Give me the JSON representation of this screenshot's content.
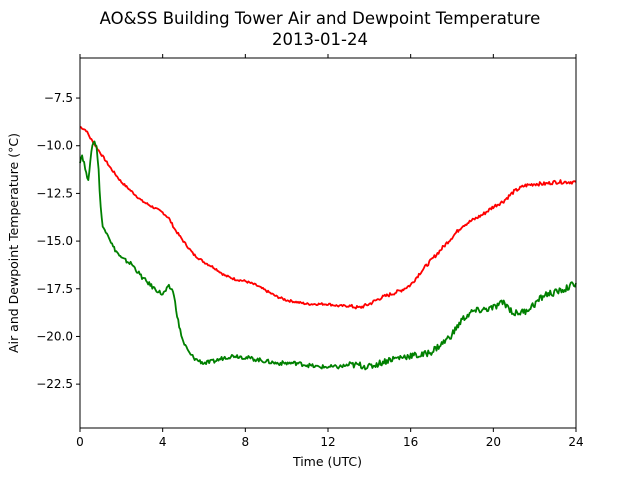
{
  "chart_data": {
    "type": "line",
    "title": "AO&SS Building Tower Air and Dewpoint Temperature",
    "subtitle": "2013-01-24",
    "xlabel": "Time (UTC)",
    "ylabel": "Air and Dewpoint Temperature (°C)",
    "xlim": [
      0,
      24
    ],
    "ylim": [
      -24.8,
      -5.4
    ],
    "xticks": [
      0,
      4,
      8,
      12,
      16,
      20,
      24
    ],
    "xtick_labels": [
      "0",
      "4",
      "8",
      "12",
      "16",
      "20",
      "24"
    ],
    "yticks": [
      -22.5,
      -20.0,
      -17.5,
      -15.0,
      -12.5,
      -10.0,
      -7.5
    ],
    "ytick_labels": [
      "−22.5",
      "−20.0",
      "−17.5",
      "−15.0",
      "−12.5",
      "−10.0",
      "−7.5"
    ],
    "grid": false,
    "legend": "none",
    "series": [
      {
        "color": "#ff0000",
        "x": [
          0,
          0.3,
          0.5,
          1.0,
          1.5,
          2.0,
          2.5,
          3.0,
          3.5,
          4.0,
          4.3,
          4.6,
          5.0,
          5.5,
          6.0,
          6.5,
          7.0,
          7.5,
          8.0,
          8.5,
          9.0,
          9.5,
          10.0,
          10.5,
          11.0,
          11.5,
          12.0,
          12.5,
          13.0,
          13.5,
          14.0,
          14.5,
          15.0,
          15.5,
          16.0,
          16.5,
          17.0,
          17.5,
          18.0,
          18.5,
          19.0,
          19.5,
          20.0,
          20.5,
          21.0,
          21.5,
          22.0,
          22.5,
          23.0,
          23.5,
          24.0
        ],
        "y": [
          -9.0,
          -9.2,
          -9.6,
          -10.4,
          -11.2,
          -11.9,
          -12.4,
          -12.9,
          -13.2,
          -13.5,
          -13.8,
          -14.4,
          -15.0,
          -15.7,
          -16.1,
          -16.4,
          -16.8,
          -17.0,
          -17.1,
          -17.3,
          -17.6,
          -17.9,
          -18.1,
          -18.2,
          -18.3,
          -18.3,
          -18.3,
          -18.4,
          -18.4,
          -18.5,
          -18.3,
          -18.0,
          -17.8,
          -17.6,
          -17.3,
          -16.6,
          -16.0,
          -15.4,
          -14.8,
          -14.2,
          -13.9,
          -13.6,
          -13.2,
          -12.9,
          -12.4,
          -12.1,
          -12.0,
          -12.0,
          -11.9,
          -11.9,
          -11.9
        ]
      },
      {
        "color": "#008000",
        "x": [
          0,
          0.1,
          0.2,
          0.3,
          0.4,
          0.5,
          0.6,
          0.7,
          0.8,
          0.9,
          1.0,
          1.1,
          1.3,
          1.6,
          2.0,
          2.5,
          3.0,
          3.5,
          4.0,
          4.3,
          4.5,
          4.8,
          5.0,
          5.3,
          5.6,
          6.0,
          6.5,
          7.0,
          7.5,
          8.0,
          8.5,
          9.0,
          9.5,
          10.0,
          10.5,
          11.0,
          11.5,
          12.0,
          12.5,
          13.0,
          13.5,
          14.0,
          14.5,
          15.0,
          15.5,
          16.0,
          16.5,
          17.0,
          17.5,
          18.0,
          18.5,
          19.0,
          19.5,
          20.0,
          20.5,
          21.0,
          21.5,
          22.0,
          22.5,
          23.0,
          23.5,
          24.0
        ],
        "y": [
          -10.8,
          -10.5,
          -10.9,
          -11.5,
          -11.7,
          -10.9,
          -9.9,
          -9.8,
          -10.0,
          -11.3,
          -13.2,
          -14.3,
          -14.5,
          -15.3,
          -15.9,
          -16.2,
          -16.9,
          -17.4,
          -17.8,
          -17.4,
          -17.6,
          -19.5,
          -20.3,
          -20.9,
          -21.2,
          -21.4,
          -21.3,
          -21.1,
          -21.0,
          -21.1,
          -21.2,
          -21.3,
          -21.4,
          -21.4,
          -21.4,
          -21.5,
          -21.6,
          -21.6,
          -21.6,
          -21.5,
          -21.5,
          -21.6,
          -21.4,
          -21.2,
          -21.1,
          -21.0,
          -21.0,
          -20.8,
          -20.4,
          -19.9,
          -19.1,
          -18.7,
          -18.6,
          -18.5,
          -18.2,
          -18.8,
          -18.7,
          -18.3,
          -17.8,
          -17.7,
          -17.5,
          -17.2
        ]
      }
    ]
  }
}
